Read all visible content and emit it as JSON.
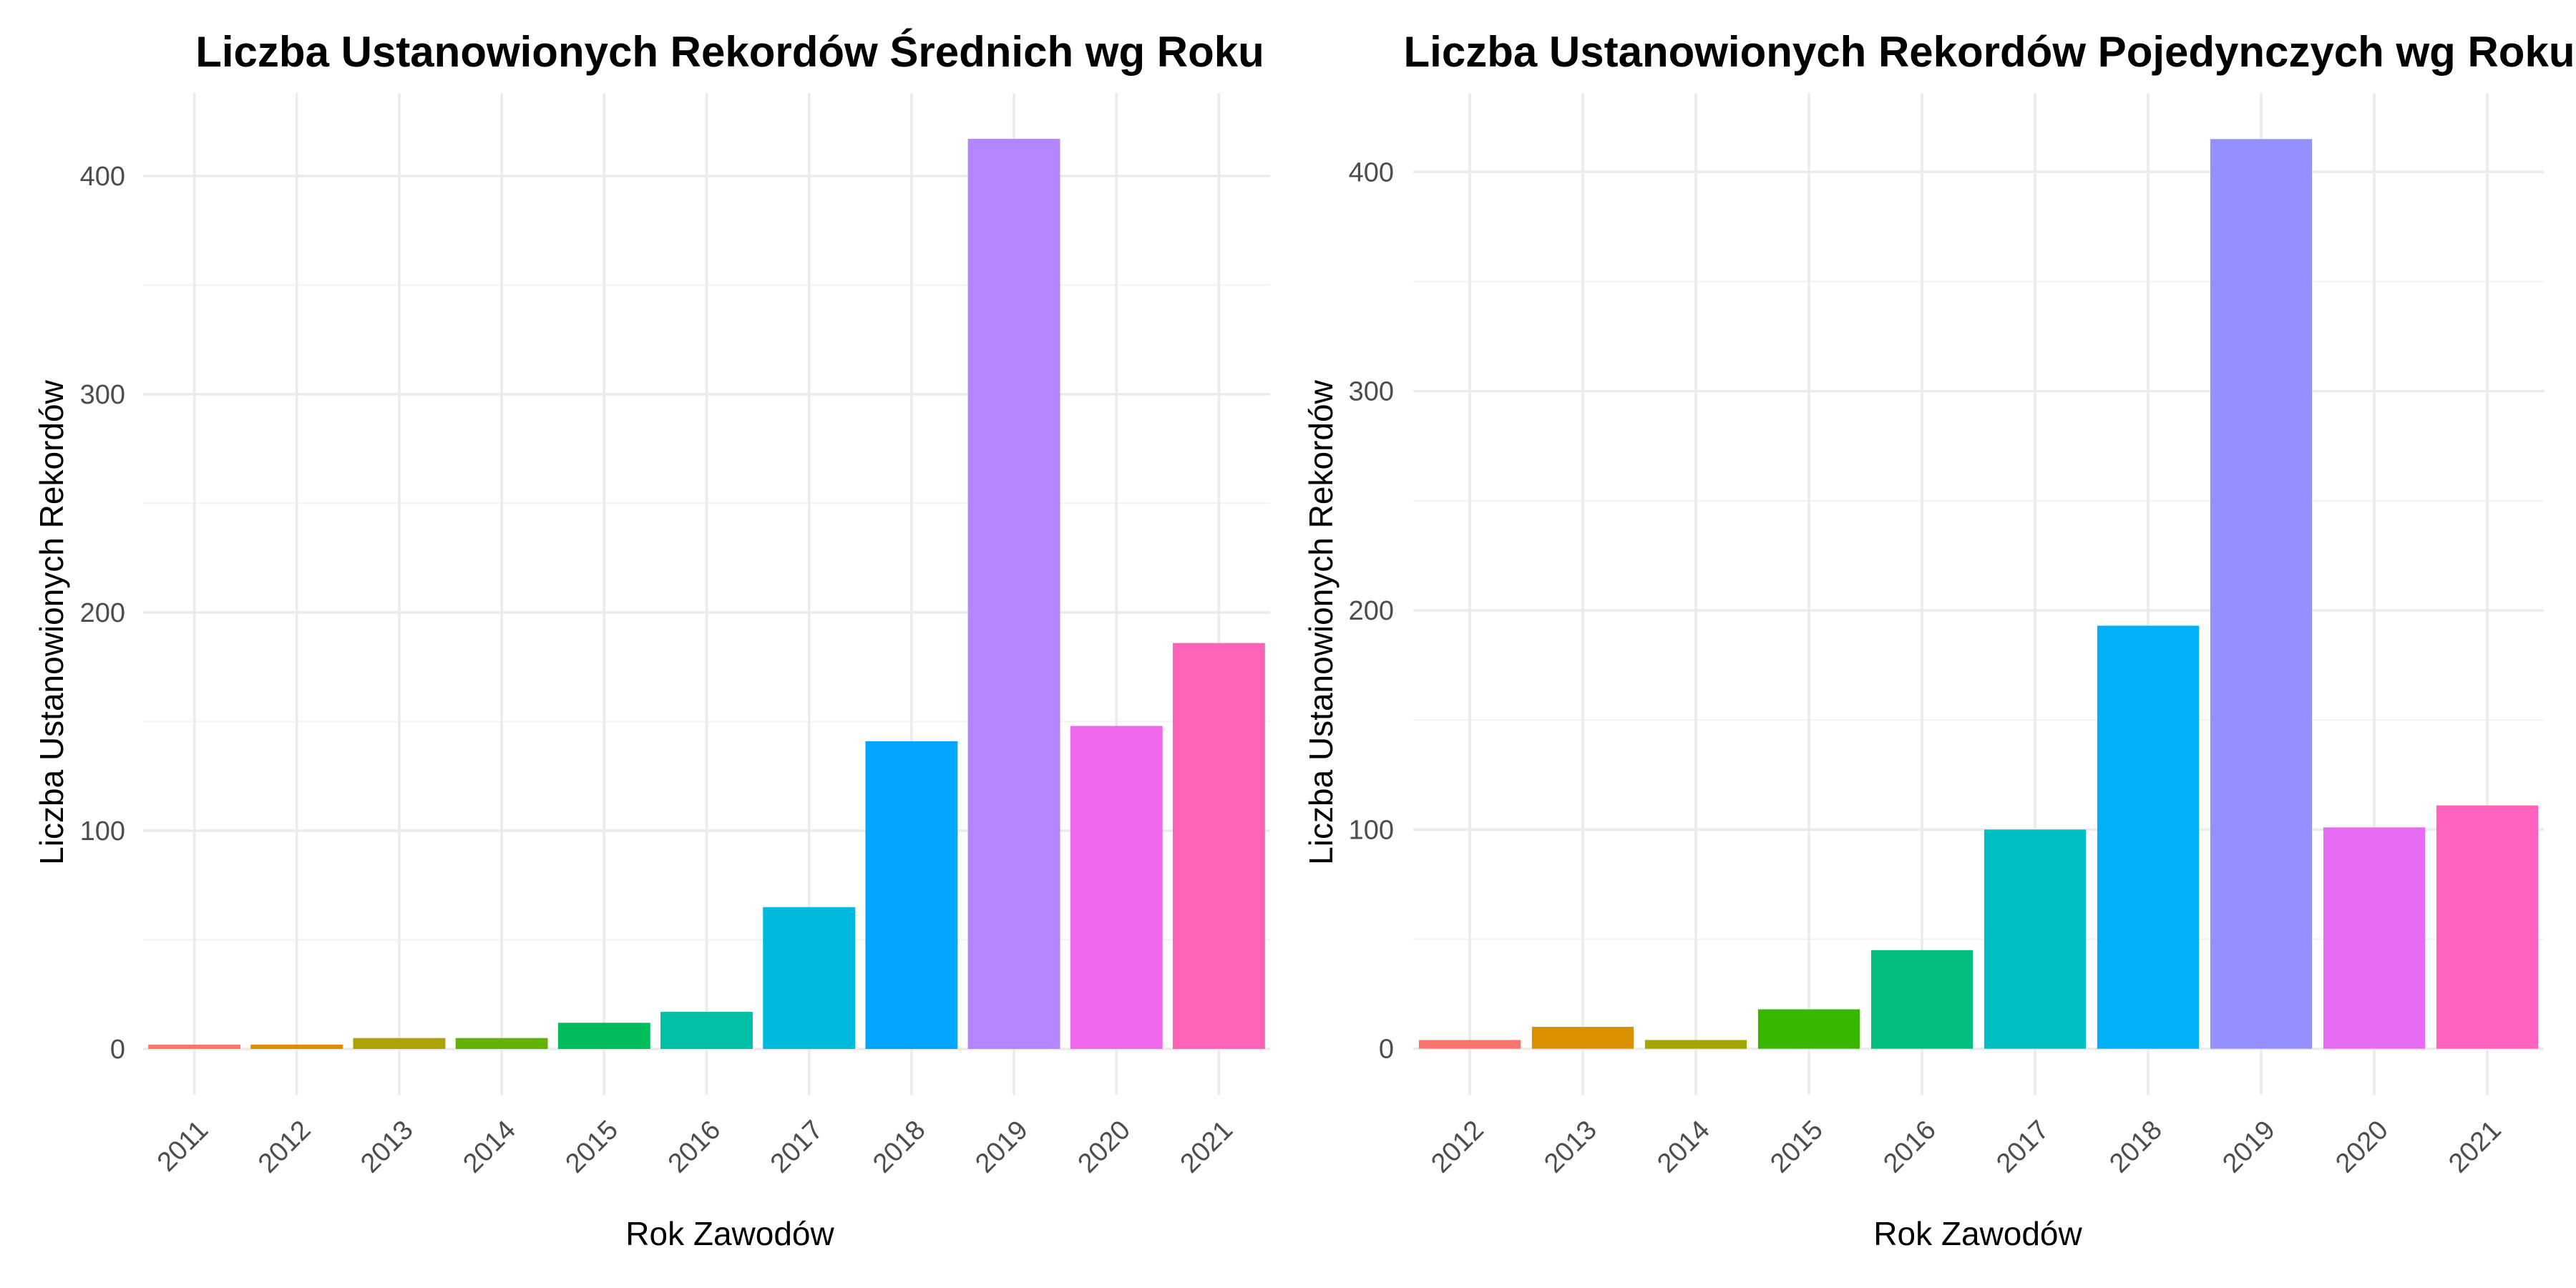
{
  "chart_data": [
    {
      "type": "bar",
      "title": "Liczba Ustanowionych Rekordów Średnich wg Roku",
      "xlabel": "Rok Zawodów",
      "ylabel": "Liczba Ustanowionych Rekordów",
      "categories": [
        "2011",
        "2012",
        "2013",
        "2014",
        "2015",
        "2016",
        "2017",
        "2018",
        "2019",
        "2020",
        "2021"
      ],
      "values": [
        2,
        2,
        5,
        5,
        12,
        17,
        65,
        141,
        417,
        148,
        186
      ],
      "colors": [
        "#F8766D",
        "#DB8E00",
        "#AEA200",
        "#64B200",
        "#00BD5C",
        "#00C1A7",
        "#00BADE",
        "#00A6FF",
        "#B385FF",
        "#EF67EB",
        "#FF63B6"
      ],
      "yticks": [
        0,
        100,
        200,
        300,
        400
      ],
      "ylim": [
        -21,
        438
      ],
      "grid": true
    },
    {
      "type": "bar",
      "title": "Liczba Ustanowionych Rekordów Pojedynczych wg Roku",
      "xlabel": "Rok Zawodów",
      "ylabel": "Liczba Ustanowionych Rekordów",
      "categories": [
        "2012",
        "2013",
        "2014",
        "2015",
        "2016",
        "2017",
        "2018",
        "2019",
        "2020",
        "2021"
      ],
      "values": [
        4,
        10,
        4,
        18,
        45,
        100,
        193,
        415,
        101,
        111
      ],
      "colors": [
        "#F8766D",
        "#D89000",
        "#A3A500",
        "#39B600",
        "#00BF7D",
        "#00BFC4",
        "#00B0F6",
        "#9590FF",
        "#E76BF3",
        "#FF62BC"
      ],
      "yticks": [
        0,
        100,
        200,
        300,
        400
      ],
      "ylim": [
        -21,
        436
      ],
      "grid": true
    }
  ]
}
